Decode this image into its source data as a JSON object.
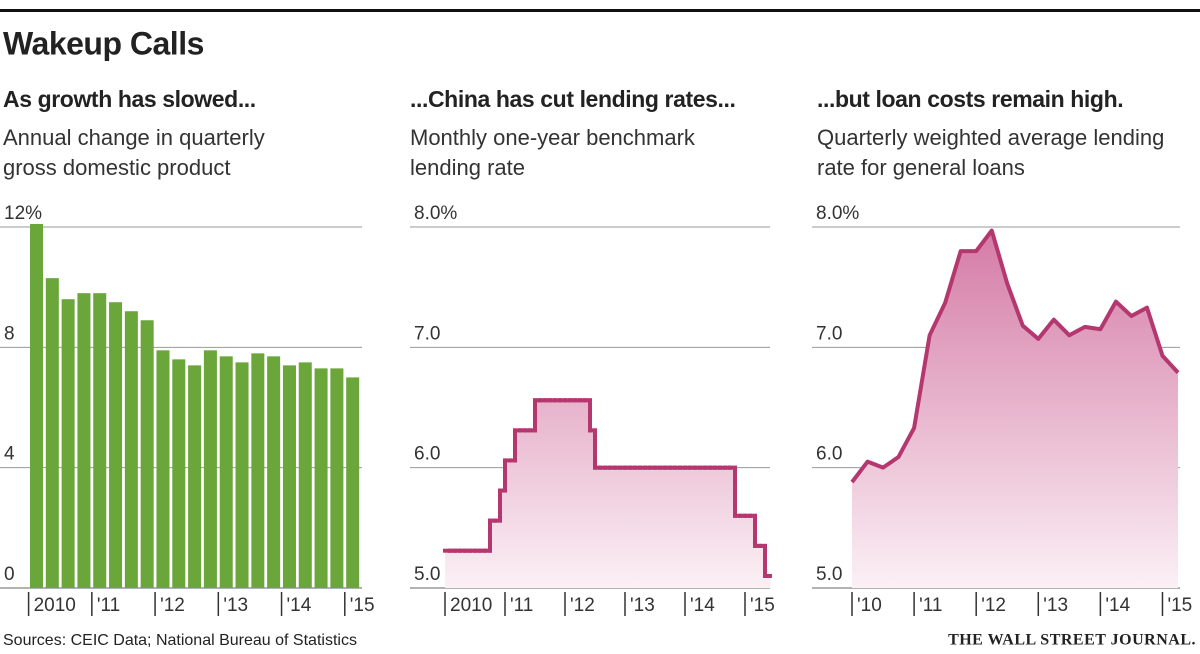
{
  "title": "Wakeup Calls",
  "source": "Sources: CEIC Data; National Bureau of Statistics",
  "credit": "THE WALL STREET JOURNAL.",
  "chart_data": [
    {
      "type": "bar",
      "title": "As growth has slowed...",
      "subtitle": [
        "Annual change in quarterly",
        "gross domestic product"
      ],
      "categories": [
        "2010",
        null,
        null,
        null,
        "'11",
        null,
        null,
        null,
        "'12",
        null,
        null,
        null,
        "'13",
        null,
        null,
        null,
        "'14",
        null,
        null,
        null,
        "'15"
      ],
      "values": [
        12.1,
        10.3,
        9.6,
        9.8,
        9.8,
        9.5,
        9.2,
        8.9,
        7.9,
        7.6,
        7.4,
        7.9,
        7.7,
        7.5,
        7.8,
        7.7,
        7.4,
        7.5,
        7.3,
        7.3,
        7.0
      ],
      "color": "#6aa63a",
      "ylim": [
        0,
        12
      ],
      "yticks": [
        0,
        4,
        8,
        {
          "value": 12,
          "label": "12%"
        }
      ],
      "grid": true
    },
    {
      "type": "step",
      "title": "...China has cut lending rates...",
      "subtitle": [
        "Monthly one-year benchmark",
        "lending rate"
      ],
      "categories": [
        "2010",
        null,
        null,
        null,
        null,
        null,
        null,
        null,
        null,
        null,
        null,
        null,
        "'11",
        null,
        null,
        null,
        null,
        null,
        null,
        null,
        null,
        null,
        null,
        null,
        "'12",
        null,
        null,
        null,
        null,
        null,
        null,
        null,
        null,
        null,
        null,
        null,
        "'13",
        null,
        null,
        null,
        null,
        null,
        null,
        null,
        null,
        null,
        null,
        null,
        "'14",
        null,
        null,
        null,
        null,
        null,
        null,
        null,
        null,
        null,
        null,
        null,
        "'15",
        null,
        null,
        null,
        null
      ],
      "values": [
        5.31,
        5.31,
        5.31,
        5.31,
        5.31,
        5.31,
        5.31,
        5.31,
        5.31,
        5.56,
        5.56,
        5.81,
        6.06,
        6.06,
        6.31,
        6.31,
        6.31,
        6.31,
        6.56,
        6.56,
        6.56,
        6.56,
        6.56,
        6.56,
        6.56,
        6.56,
        6.56,
        6.56,
        6.56,
        6.31,
        6.0,
        6.0,
        6.0,
        6.0,
        6.0,
        6.0,
        6.0,
        6.0,
        6.0,
        6.0,
        6.0,
        6.0,
        6.0,
        6.0,
        6.0,
        6.0,
        6.0,
        6.0,
        6.0,
        6.0,
        6.0,
        6.0,
        6.0,
        6.0,
        6.0,
        6.0,
        6.0,
        6.0,
        5.6,
        5.6,
        5.6,
        5.6,
        5.35,
        5.35,
        5.1
      ],
      "color": "#b4376f",
      "ylim": [
        5,
        8
      ],
      "yticks": [
        {
          "value": 5,
          "label": "5.0"
        },
        {
          "value": 6,
          "label": "6.0"
        },
        {
          "value": 7,
          "label": "7.0"
        },
        {
          "value": 8,
          "label": "8.0%"
        }
      ],
      "grid": true,
      "area": true
    },
    {
      "type": "line",
      "title": "...but loan costs remain high.",
      "subtitle": [
        "Quarterly weighted average lending",
        "rate for general loans"
      ],
      "categories": [
        "'10",
        null,
        null,
        null,
        "'11",
        null,
        null,
        null,
        "'12",
        null,
        null,
        null,
        "'13",
        null,
        null,
        null,
        "'14",
        null,
        null,
        null,
        "'15",
        null
      ],
      "values": [
        5.88,
        6.05,
        6.0,
        6.09,
        6.33,
        7.1,
        7.37,
        7.8,
        7.8,
        7.97,
        7.53,
        7.18,
        7.07,
        7.23,
        7.1,
        7.17,
        7.15,
        7.38,
        7.26,
        7.33,
        6.93,
        6.79
      ],
      "color": "#b4376f",
      "ylim": [
        5,
        8
      ],
      "yticks": [
        {
          "value": 5,
          "label": "5.0"
        },
        {
          "value": 6,
          "label": "6.0"
        },
        {
          "value": 7,
          "label": "7.0"
        },
        {
          "value": 8,
          "label": "8.0%"
        }
      ],
      "grid": true,
      "area": true
    }
  ]
}
